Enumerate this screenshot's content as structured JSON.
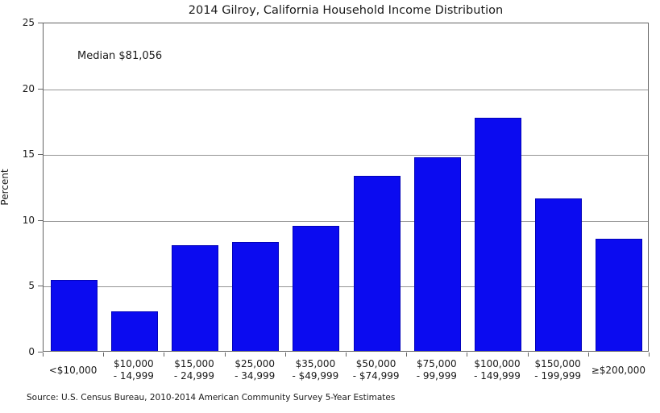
{
  "title": "2014 Gilroy, California Household Income Distribution",
  "annotation": "Median $81,056",
  "source": "Source: U.S. Census Bureau, 2010-2014 American Community Survey 5-Year Estimates",
  "colors": {
    "bar_fill": "#0b0bf0",
    "bar_edge": "#0202b8",
    "gridline": "#959595",
    "frame": "#636363",
    "text": "#1a1a1a",
    "background": "#ffffff"
  },
  "chart_data": {
    "type": "bar",
    "title": "2014 Gilroy, California Household Income Distribution",
    "xlabel": "",
    "ylabel": "Percent",
    "categories": [
      "<$10,000",
      "$10,000 - 14,999",
      "$15,000 - 24,999",
      "$25,000 - 34,999",
      "$35,000 - $49,999",
      "$50,000 - $74,999",
      "$75,000 - 99,999",
      "$100,000 - 149,999",
      "$150,000 - 199,999",
      "≥$200,000"
    ],
    "values": [
      5.4,
      3.0,
      8.0,
      8.3,
      9.5,
      13.3,
      14.7,
      17.7,
      11.6,
      8.5
    ],
    "ylim": [
      0,
      25
    ],
    "yticks": [
      0,
      5,
      10,
      15,
      20,
      25
    ],
    "grid": "horizontal",
    "legend": "none",
    "annotations": [
      "Median $81,056"
    ]
  }
}
